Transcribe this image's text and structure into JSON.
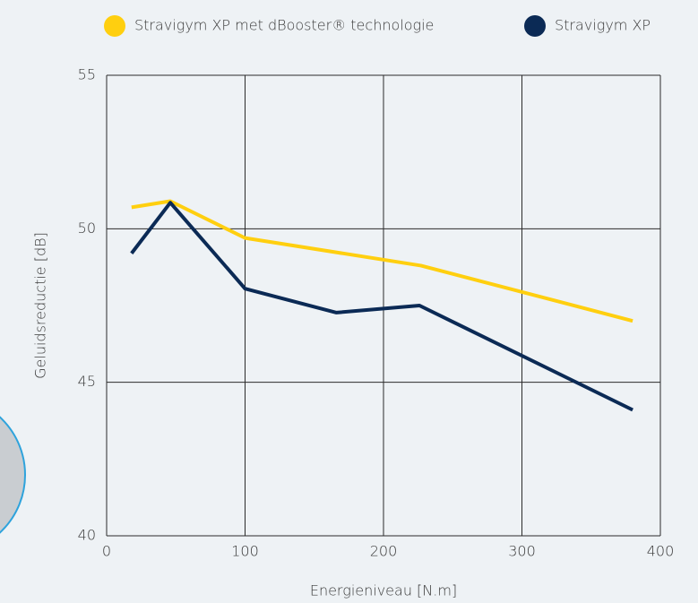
{
  "chart_data": {
    "type": "line",
    "x_label": "Energieniveau [N.m]",
    "y_label": "Geluidsreductie [dB]",
    "series": [
      {
        "name": "Stravigym XP met dBooster® technologie",
        "color": "#ffcf0f",
        "x": [
          18,
          46,
          100,
          227,
          380
        ],
        "values": [
          50.7,
          50.9,
          49.7,
          48.8,
          47.0
        ]
      },
      {
        "name": "Stravigym XP",
        "color": "#0b2a55",
        "x": [
          18,
          46,
          100,
          166,
          226,
          380
        ],
        "values": [
          49.2,
          50.85,
          48.05,
          47.27,
          47.5,
          44.1
        ]
      }
    ],
    "xlim": [
      0,
      400
    ],
    "xticks": [
      0,
      100,
      200,
      300,
      400
    ],
    "ylim": [
      40,
      55
    ],
    "yticks": [
      40,
      45,
      50,
      55
    ],
    "grid": true
  }
}
